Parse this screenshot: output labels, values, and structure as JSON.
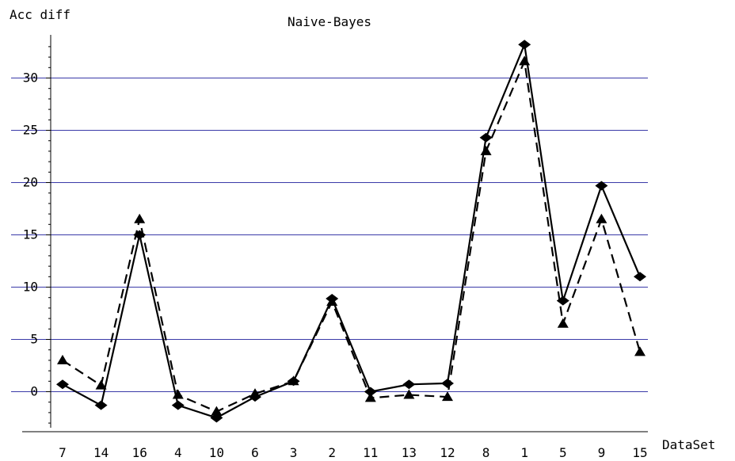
{
  "chart_data": {
    "type": "line",
    "title": "Naive-Bayes",
    "ylabel": "Acc diff",
    "xlabel": "DataSet",
    "categories": [
      "7",
      "14",
      "16",
      "4",
      "10",
      "6",
      "3",
      "2",
      "11",
      "13",
      "12",
      "8",
      "1",
      "5",
      "9",
      "15"
    ],
    "yticks": [
      0,
      5,
      10,
      15,
      20,
      25,
      30
    ],
    "ytick_labels": [
      "0",
      "5",
      "10",
      "15",
      "20",
      "25",
      "30"
    ],
    "ylim": [
      -4.5,
      34.5
    ],
    "grid": "horizontal",
    "gridline_color": "#3a3aa8",
    "series": [
      {
        "style": "solid",
        "marker": "diamond",
        "values": [
          0.7,
          -1.3,
          15.0,
          -1.3,
          -2.5,
          -0.5,
          1.0,
          8.9,
          0.0,
          0.7,
          0.8,
          24.3,
          33.2,
          8.7,
          19.7,
          11.0
        ]
      },
      {
        "style": "dashed",
        "marker": "triangle",
        "values": [
          3.0,
          0.6,
          16.5,
          -0.3,
          -1.9,
          -0.2,
          1.0,
          8.6,
          -0.6,
          -0.3,
          -0.5,
          23.0,
          31.6,
          6.5,
          16.5,
          3.8
        ]
      }
    ]
  }
}
